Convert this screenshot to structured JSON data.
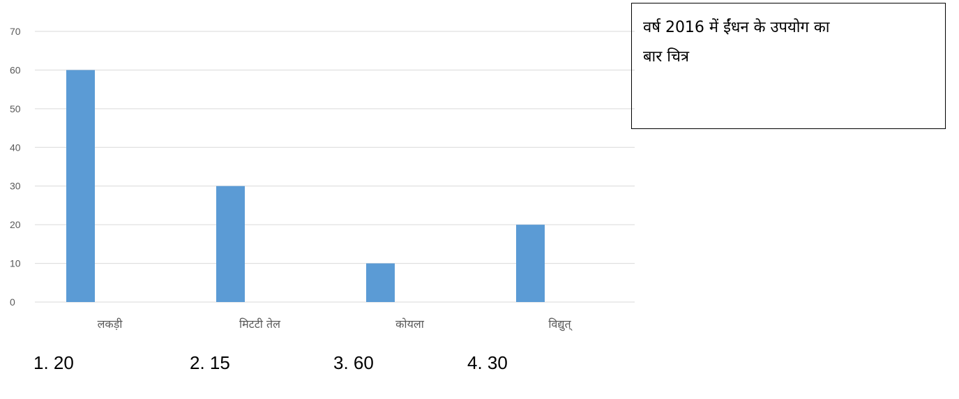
{
  "chart_data": {
    "type": "bar",
    "categories": [
      "लकड़ी",
      "मिटटी  तेल",
      "कोयला",
      "विद्युत्"
    ],
    "values": [
      60,
      30,
      10,
      20
    ],
    "ylim": [
      0,
      70
    ],
    "yticks": [
      0,
      10,
      20,
      30,
      40,
      50,
      60,
      70
    ],
    "grid": true,
    "bar_color": "#5b9bd5",
    "grid_color": "#d9d9d9"
  },
  "caption": {
    "line1": "वर्ष  2016  में ईंधन के उपयोग का",
    "line2": "बार चित्र"
  },
  "options": [
    "1. 20",
    "2. 15",
    "3. 60",
    "4. 30"
  ]
}
